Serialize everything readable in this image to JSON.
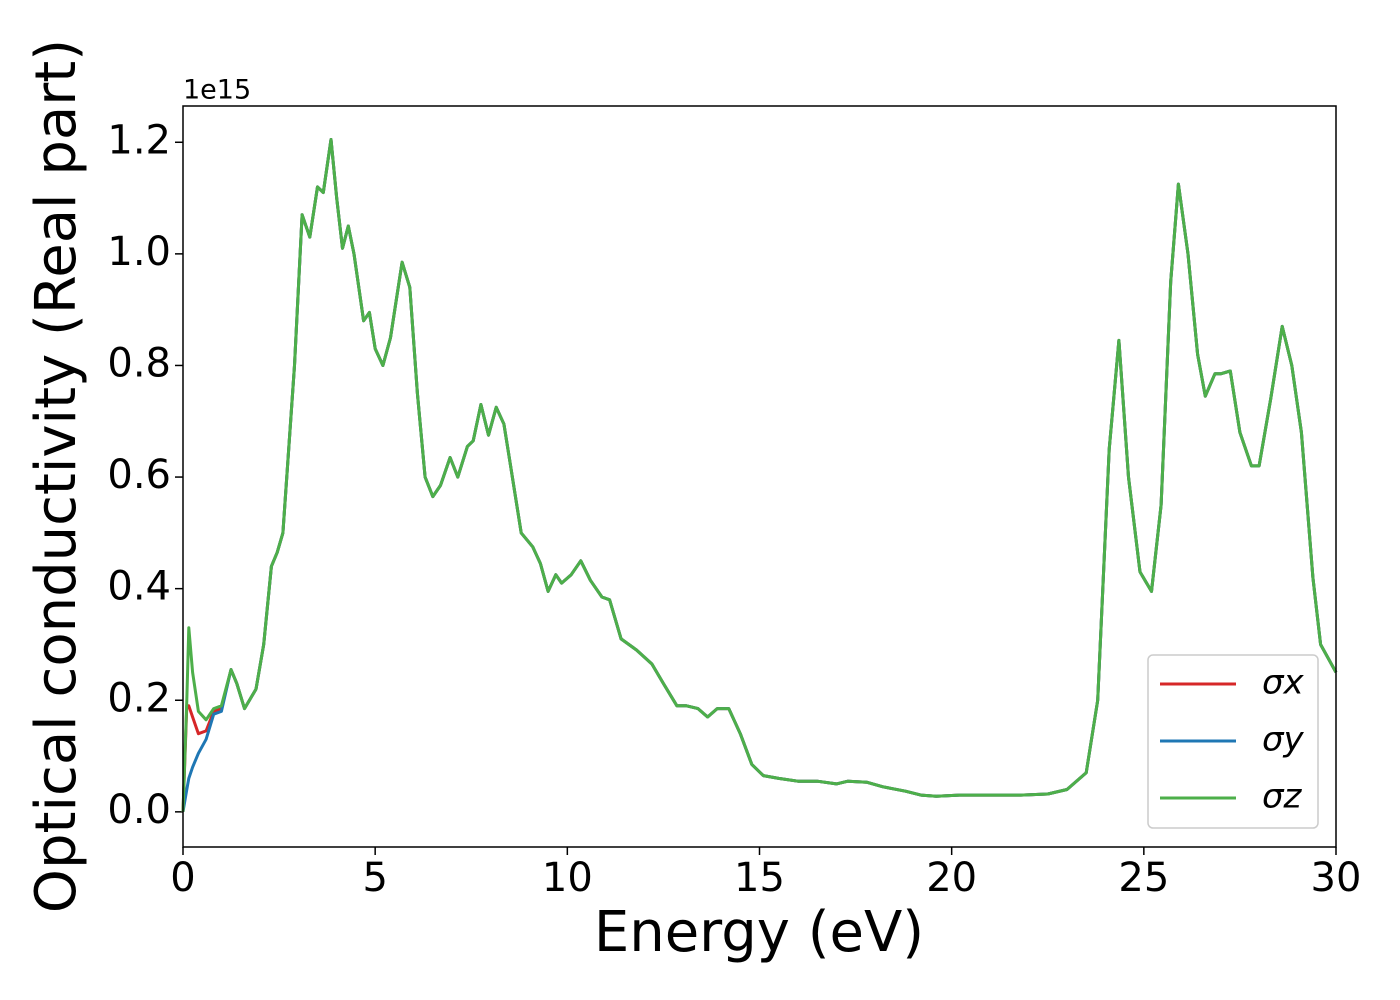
{
  "chart_data": {
    "type": "line",
    "xlabel": "Energy (eV)",
    "ylabel": "Optical conductivity (Real part)",
    "offset_text": "1e15",
    "xlim": [
      0,
      30
    ],
    "xticks": [
      0,
      5,
      10,
      15,
      20,
      25,
      30
    ],
    "ylim": [
      -0.063,
      1.265
    ],
    "yticks": [
      {
        "value": 0,
        "label": "0.0"
      },
      0.2,
      0.4,
      0.6,
      0.8,
      {
        "value": 1,
        "label": "1.0"
      },
      1.2
    ],
    "legend": "lower right",
    "x": [
      0,
      0.1,
      0.15,
      0.25,
      0.4,
      0.6,
      0.8,
      1.0,
      1.25,
      1.4,
      1.6,
      1.9,
      2.1,
      2.3,
      2.45,
      2.6,
      2.9,
      3.1,
      3.3,
      3.5,
      3.65,
      3.85,
      4.0,
      4.15,
      4.3,
      4.45,
      4.7,
      4.85,
      5.0,
      5.2,
      5.4,
      5.7,
      5.9,
      6.1,
      6.3,
      6.5,
      6.7,
      6.95,
      7.15,
      7.4,
      7.55,
      7.75,
      7.95,
      8.15,
      8.35,
      8.5,
      8.8,
      9.1,
      9.3,
      9.5,
      9.7,
      9.85,
      10.1,
      10.35,
      10.6,
      10.9,
      11.1,
      11.4,
      11.8,
      12.2,
      12.5,
      12.85,
      13.1,
      13.4,
      13.65,
      13.9,
      14.2,
      14.5,
      14.8,
      15.1,
      15.5,
      16.0,
      16.5,
      17.0,
      17.3,
      17.8,
      18.2,
      18.8,
      19.2,
      19.6,
      20.2,
      20.8,
      21.3,
      21.8,
      22.5,
      23.0,
      23.5,
      23.8,
      24.1,
      24.35,
      24.6,
      24.9,
      25.2,
      25.45,
      25.7,
      25.9,
      26.15,
      26.4,
      26.6,
      26.85,
      27.0,
      27.25,
      27.5,
      27.8,
      28.0,
      28.3,
      28.6,
      28.85,
      29.1,
      29.4,
      29.6,
      30
    ],
    "series": [
      {
        "name": "σx",
        "color": "#d62728",
        "values": [
          0,
          0.19,
          0.19,
          0.17,
          0.14,
          0.145,
          0.18,
          0.185,
          0.255,
          0.23,
          0.185,
          0.22,
          0.3,
          0.44,
          0.465,
          0.5,
          0.8,
          1.07,
          1.03,
          1.12,
          1.11,
          1.205,
          1.1,
          1.01,
          1.05,
          1.0,
          0.88,
          0.895,
          0.83,
          0.8,
          0.85,
          0.985,
          0.94,
          0.75,
          0.6,
          0.565,
          0.585,
          0.635,
          0.6,
          0.655,
          0.665,
          0.73,
          0.675,
          0.725,
          0.695,
          0.63,
          0.5,
          0.475,
          0.445,
          0.395,
          0.425,
          0.41,
          0.425,
          0.45,
          0.415,
          0.385,
          0.38,
          0.31,
          0.29,
          0.265,
          0.23,
          0.19,
          0.19,
          0.185,
          0.17,
          0.185,
          0.185,
          0.14,
          0.085,
          0.065,
          0.06,
          0.055,
          0.055,
          0.05,
          0.055,
          0.053,
          0.045,
          0.037,
          0.03,
          0.028,
          0.03,
          0.03,
          0.03,
          0.03,
          0.032,
          0.04,
          0.07,
          0.2,
          0.65,
          0.845,
          0.6,
          0.43,
          0.395,
          0.55,
          0.95,
          1.125,
          1.0,
          0.82,
          0.745,
          0.785,
          0.785,
          0.79,
          0.68,
          0.62,
          0.62,
          0.74,
          0.87,
          0.8,
          0.68,
          0.42,
          0.3,
          0.25
        ]
      },
      {
        "name": "σy",
        "color": "#1f77b4",
        "values": [
          0,
          0.04,
          0.06,
          0.08,
          0.105,
          0.13,
          0.175,
          0.18,
          0.255,
          0.23,
          0.185,
          0.22,
          0.3,
          0.44,
          0.465,
          0.5,
          0.8,
          1.07,
          1.03,
          1.12,
          1.11,
          1.205,
          1.1,
          1.01,
          1.05,
          1.0,
          0.88,
          0.895,
          0.83,
          0.8,
          0.85,
          0.985,
          0.94,
          0.75,
          0.6,
          0.565,
          0.585,
          0.635,
          0.6,
          0.655,
          0.665,
          0.73,
          0.675,
          0.725,
          0.695,
          0.63,
          0.5,
          0.475,
          0.445,
          0.395,
          0.425,
          0.41,
          0.425,
          0.45,
          0.415,
          0.385,
          0.38,
          0.31,
          0.29,
          0.265,
          0.23,
          0.19,
          0.19,
          0.185,
          0.17,
          0.185,
          0.185,
          0.14,
          0.085,
          0.065,
          0.06,
          0.055,
          0.055,
          0.05,
          0.055,
          0.053,
          0.045,
          0.037,
          0.03,
          0.028,
          0.03,
          0.03,
          0.03,
          0.03,
          0.032,
          0.04,
          0.07,
          0.2,
          0.65,
          0.845,
          0.6,
          0.43,
          0.395,
          0.55,
          0.95,
          1.125,
          1.0,
          0.82,
          0.745,
          0.785,
          0.785,
          0.79,
          0.68,
          0.62,
          0.62,
          0.74,
          0.87,
          0.8,
          0.68,
          0.42,
          0.3,
          0.25
        ]
      },
      {
        "name": "σz",
        "color": "#4daf4a",
        "values": [
          0,
          0.2,
          0.33,
          0.25,
          0.18,
          0.165,
          0.185,
          0.19,
          0.255,
          0.23,
          0.185,
          0.22,
          0.3,
          0.44,
          0.465,
          0.5,
          0.8,
          1.07,
          1.03,
          1.12,
          1.11,
          1.205,
          1.1,
          1.01,
          1.05,
          1.0,
          0.88,
          0.895,
          0.83,
          0.8,
          0.85,
          0.985,
          0.94,
          0.75,
          0.6,
          0.565,
          0.585,
          0.635,
          0.6,
          0.655,
          0.665,
          0.73,
          0.675,
          0.725,
          0.695,
          0.63,
          0.5,
          0.475,
          0.445,
          0.395,
          0.425,
          0.41,
          0.425,
          0.45,
          0.415,
          0.385,
          0.38,
          0.31,
          0.29,
          0.265,
          0.23,
          0.19,
          0.19,
          0.185,
          0.17,
          0.185,
          0.185,
          0.14,
          0.085,
          0.065,
          0.06,
          0.055,
          0.055,
          0.05,
          0.055,
          0.053,
          0.045,
          0.037,
          0.03,
          0.028,
          0.03,
          0.03,
          0.03,
          0.03,
          0.032,
          0.04,
          0.07,
          0.2,
          0.65,
          0.845,
          0.6,
          0.43,
          0.395,
          0.55,
          0.95,
          1.125,
          1.0,
          0.82,
          0.745,
          0.785,
          0.785,
          0.79,
          0.68,
          0.62,
          0.62,
          0.74,
          0.87,
          0.8,
          0.68,
          0.42,
          0.3,
          0.25
        ]
      }
    ]
  }
}
